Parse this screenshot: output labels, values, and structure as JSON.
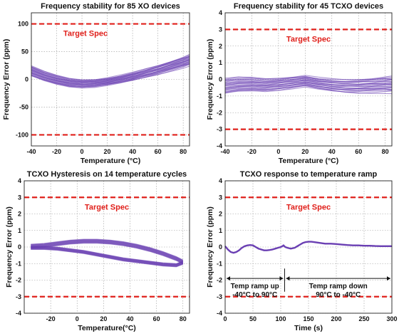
{
  "chart_data": [
    {
      "type": "line",
      "title": "Frequency stability for 85 XO devices",
      "xlabel": "Temperature (°C)",
      "ylabel": "Frequency Error (ppm)",
      "xlim": [
        -40,
        85
      ],
      "ylim": [
        -120,
        120
      ],
      "xticks": [
        -40,
        -20,
        0,
        20,
        40,
        60,
        80
      ],
      "yticks": [
        -100,
        -50,
        0,
        50,
        100
      ],
      "grid": true,
      "spec_label": "Target Spec",
      "spec_limits": [
        100,
        -100
      ],
      "series_count": 85,
      "x": [
        -40,
        -30,
        -20,
        -10,
        0,
        10,
        20,
        30,
        40,
        50,
        60,
        70,
        80,
        85
      ],
      "y": [
        15,
        6,
        -1,
        -6,
        -8,
        -7,
        -4,
        0,
        5,
        11,
        17,
        24,
        31,
        35
      ],
      "spread": 9
    },
    {
      "type": "line",
      "title": "Frequency stability for 45 TCXO devices",
      "xlabel": "Temperature (°C)",
      "ylabel": "Frequency Error (ppm)",
      "xlim": [
        -40,
        85
      ],
      "ylim": [
        -4,
        4
      ],
      "xticks": [
        -40,
        -20,
        0,
        20,
        40,
        60,
        80
      ],
      "yticks": [
        -4,
        -3,
        -2,
        -1,
        0,
        1,
        2,
        3,
        4
      ],
      "grid": true,
      "spec_label": "Target Spec",
      "spec_limits": [
        3,
        -3
      ],
      "series_count": 45,
      "x": [
        -40,
        -30,
        -20,
        -10,
        0,
        10,
        20,
        30,
        40,
        50,
        60,
        70,
        80,
        85
      ],
      "y": [
        -0.4,
        -0.3,
        -0.3,
        -0.35,
        -0.3,
        -0.2,
        -0.1,
        -0.25,
        -0.35,
        -0.4,
        -0.4,
        -0.35,
        -0.3,
        -0.3
      ],
      "spread": 0.45
    },
    {
      "type": "line",
      "title": "TCXO Hysteresis on 14 temperature cycles",
      "xlabel": "Temperature(°C)",
      "ylabel": "Frequency Error (ppm)",
      "xlim": [
        -40,
        85
      ],
      "ylim": [
        -4,
        4
      ],
      "xticks": [
        -20,
        0,
        20,
        40,
        60,
        80
      ],
      "yticks": [
        -4,
        -3,
        -2,
        -1,
        0,
        1,
        2,
        3,
        4
      ],
      "grid": true,
      "spec_label": "Target Spec",
      "spec_limits": [
        3,
        -3
      ],
      "series_count": 14,
      "x": [
        -35,
        -25,
        -15,
        -5,
        5,
        15,
        25,
        35,
        45,
        55,
        65,
        75,
        80
      ],
      "y_upper": [
        0.05,
        0.1,
        0.2,
        0.3,
        0.35,
        0.35,
        0.3,
        0.2,
        0.05,
        -0.15,
        -0.4,
        -0.7,
        -0.9
      ],
      "y_lower": [
        -0.05,
        -0.05,
        -0.1,
        -0.2,
        -0.3,
        -0.45,
        -0.6,
        -0.75,
        -0.85,
        -0.95,
        -1.05,
        -1.1,
        -0.95
      ],
      "spread": 0.12
    },
    {
      "type": "line",
      "title": "TCXO response to temperature ramp",
      "xlabel": "Time (s)",
      "ylabel": "Frequency Error (ppm)",
      "xlim": [
        0,
        300
      ],
      "ylim": [
        -4,
        4
      ],
      "xticks": [
        0,
        50,
        100,
        150,
        200,
        250,
        300
      ],
      "yticks": [
        -4,
        -3,
        -2,
        -1,
        0,
        1,
        2,
        3,
        4
      ],
      "grid": true,
      "spec_label": "Target Spec",
      "spec_limits": [
        3,
        -3
      ],
      "annotations": [
        {
          "text1": "Temp ramp up",
          "text2": "-40°C to 90°C",
          "x_start": 0,
          "x_end": 107
        },
        {
          "text1": "Temp ramp down",
          "text2": "90°C to -40°C",
          "x_start": 107,
          "x_end": 300
        }
      ],
      "x": [
        0,
        5,
        10,
        15,
        20,
        25,
        30,
        35,
        40,
        45,
        50,
        55,
        60,
        65,
        70,
        75,
        80,
        85,
        90,
        95,
        100,
        103,
        105,
        108,
        112,
        118,
        125,
        130,
        135,
        140,
        145,
        150,
        155,
        160,
        170,
        180,
        190,
        200,
        210,
        220,
        230,
        240,
        250,
        260,
        270,
        280,
        290,
        300
      ],
      "y": [
        0.05,
        -0.15,
        -0.3,
        -0.35,
        -0.3,
        -0.2,
        -0.05,
        0.05,
        0.1,
        0.12,
        0.1,
        0.0,
        -0.1,
        -0.15,
        -0.2,
        -0.2,
        -0.18,
        -0.15,
        -0.1,
        -0.05,
        0.0,
        0.05,
        0.1,
        0.0,
        -0.05,
        -0.1,
        -0.05,
        0.05,
        0.15,
        0.25,
        0.3,
        0.32,
        0.32,
        0.3,
        0.25,
        0.2,
        0.2,
        0.18,
        0.15,
        0.12,
        0.1,
        0.1,
        0.08,
        0.08,
        0.06,
        0.05,
        0.05,
        0.05
      ]
    }
  ]
}
